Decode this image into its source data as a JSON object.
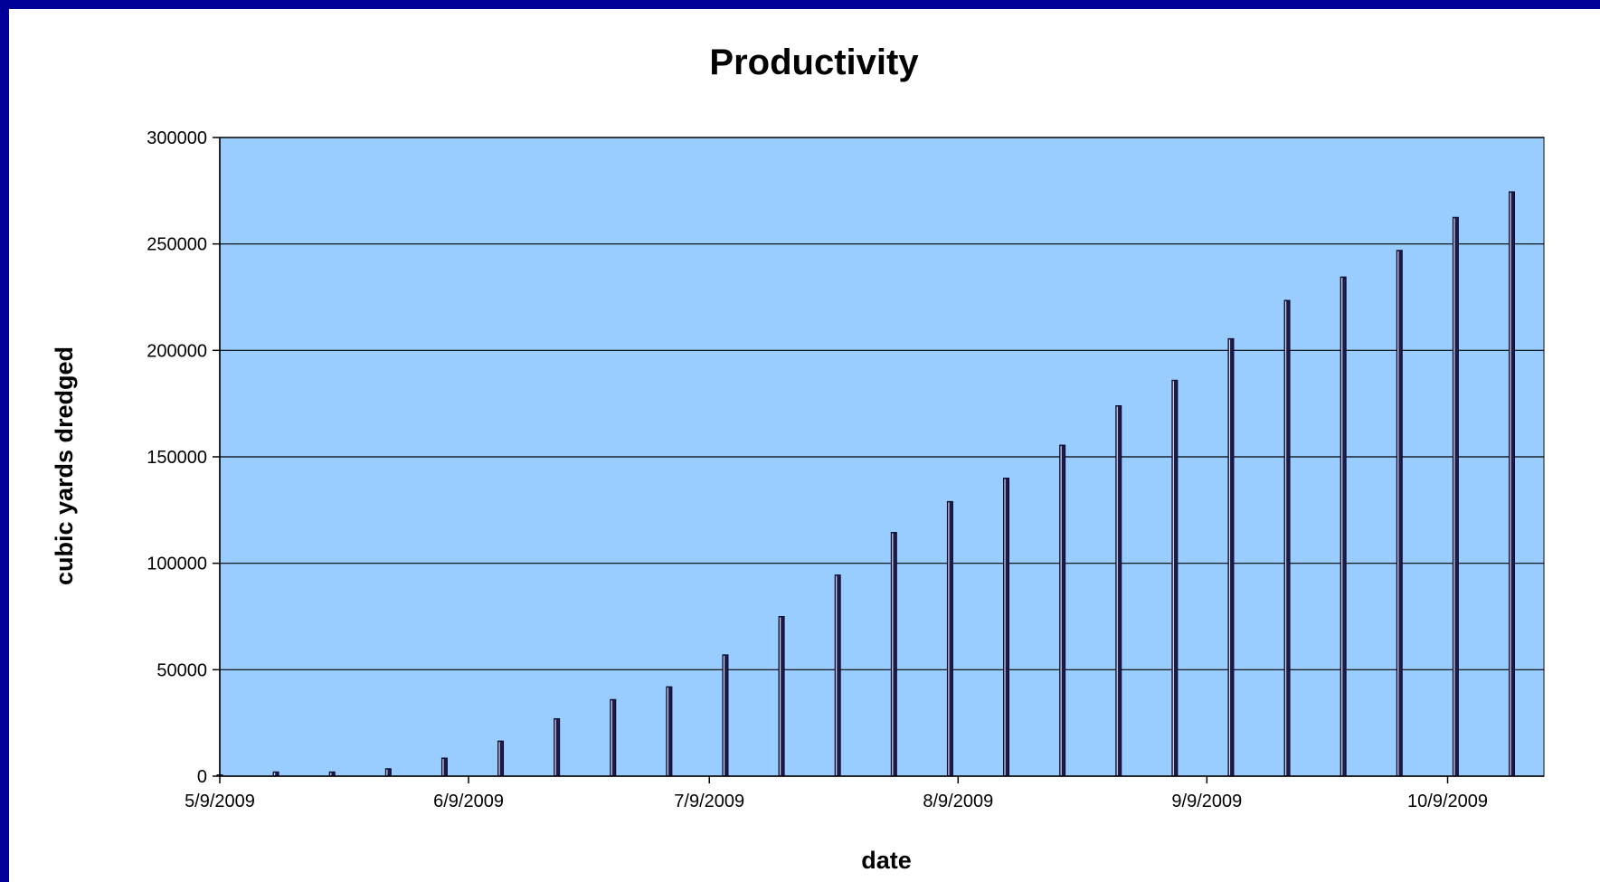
{
  "chart_data": {
    "type": "bar",
    "title": "Productivity",
    "xlabel": "date",
    "ylabel": "cubic yards dredged",
    "ylim": [
      0,
      300000
    ],
    "yticks": [
      "0",
      "50000",
      "100000",
      "150000",
      "200000",
      "250000",
      "300000"
    ],
    "xlim": [
      "5/9/2009",
      "10/21/2009"
    ],
    "xticks": [
      "5/9/2009",
      "6/9/2009",
      "7/9/2009",
      "8/9/2009",
      "9/9/2009",
      "10/9/2009"
    ],
    "grid": true,
    "legend": "none",
    "plot_background": "#99ccff",
    "bar_color": "#1a1a4d",
    "x": [
      "5/9/2009",
      "5/16/2009",
      "5/23/2009",
      "5/30/2009",
      "6/6/2009",
      "6/13/2009",
      "6/20/2009",
      "6/27/2009",
      "7/4/2009",
      "7/11/2009",
      "7/18/2009",
      "7/25/2009",
      "8/1/2009",
      "8/8/2009",
      "8/15/2009",
      "8/22/2009",
      "8/29/2009",
      "9/5/2009",
      "9/12/2009",
      "9/19/2009",
      "9/26/2009",
      "10/3/2009",
      "10/10/2009",
      "10/17/2009"
    ],
    "values": [
      500,
      2000,
      2000,
      3500,
      8500,
      16500,
      27000,
      36000,
      42000,
      57000,
      75000,
      94500,
      114500,
      129000,
      140000,
      155500,
      174000,
      186000,
      205500,
      223500,
      234500,
      247000,
      262500,
      274500
    ]
  }
}
